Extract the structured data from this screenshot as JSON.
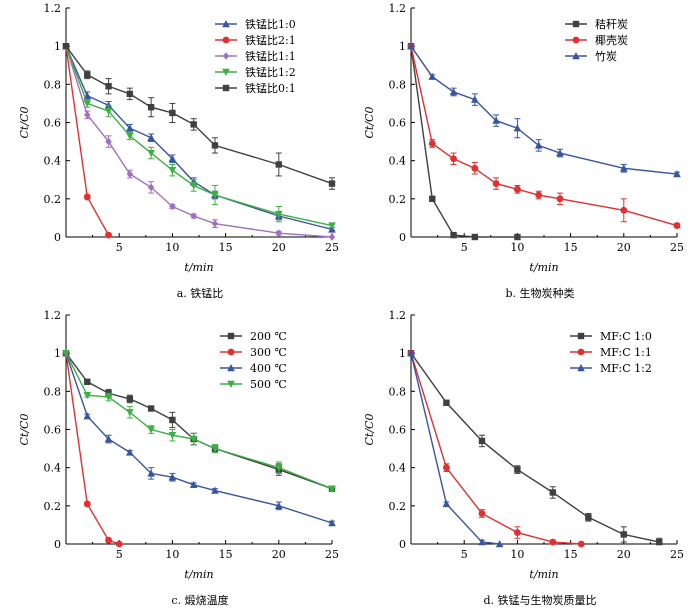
{
  "chart_data": [
    {
      "type": "line",
      "caption": "a.  铁锰比",
      "xlabel": "t/min",
      "ylabel": "Ct/C0",
      "xlim": [
        0,
        25
      ],
      "ylim": [
        0,
        1.2
      ],
      "xticks": [
        5,
        10,
        15,
        20,
        25
      ],
      "yticks": [
        0,
        0.2,
        0.4,
        0.6,
        0.8,
        1.0,
        1.2
      ],
      "legend_position": "top-right",
      "series": [
        {
          "name": "铁锰比1:0",
          "color": "#3a55a0",
          "marker": "triangle-up",
          "x": [
            0,
            2,
            4,
            6,
            8,
            10,
            12,
            14,
            20,
            25
          ],
          "y": [
            1.0,
            0.74,
            0.69,
            0.57,
            0.52,
            0.41,
            0.29,
            0.22,
            0.11,
            0.04
          ],
          "err": [
            0,
            0.02,
            0.02,
            0.02,
            0.02,
            0.02,
            0.02,
            0.02,
            0.02,
            0.01
          ]
        },
        {
          "name": "铁锰比2:1",
          "color": "#e03030",
          "marker": "circle",
          "x": [
            0,
            2,
            4
          ],
          "y": [
            1.0,
            0.21,
            0.01
          ],
          "err": [
            0,
            0.01,
            0.01
          ]
        },
        {
          "name": "铁锰比1:1",
          "color": "#a070c0",
          "marker": "diamond",
          "x": [
            0,
            2,
            4,
            6,
            8,
            10,
            12,
            14,
            20,
            25
          ],
          "y": [
            1.0,
            0.64,
            0.5,
            0.33,
            0.26,
            0.16,
            0.11,
            0.07,
            0.02,
            0.0
          ],
          "err": [
            0,
            0.02,
            0.03,
            0.02,
            0.03,
            0.01,
            0.01,
            0.02,
            0.01,
            0.0
          ]
        },
        {
          "name": "铁锰比1:2",
          "color": "#3cb043",
          "marker": "triangle-down",
          "x": [
            0,
            2,
            4,
            6,
            8,
            10,
            12,
            14,
            20,
            25
          ],
          "y": [
            1.0,
            0.7,
            0.66,
            0.53,
            0.44,
            0.35,
            0.27,
            0.22,
            0.12,
            0.06
          ],
          "err": [
            0,
            0.02,
            0.03,
            0.02,
            0.03,
            0.03,
            0.03,
            0.05,
            0.04,
            0.01
          ]
        },
        {
          "name": "铁锰比0:1",
          "color": "#404040",
          "marker": "square",
          "x": [
            0,
            2,
            4,
            6,
            8,
            10,
            12,
            14,
            20,
            25
          ],
          "y": [
            1.0,
            0.85,
            0.79,
            0.75,
            0.68,
            0.65,
            0.59,
            0.48,
            0.38,
            0.28
          ],
          "err": [
            0,
            0.02,
            0.04,
            0.03,
            0.05,
            0.05,
            0.03,
            0.04,
            0.06,
            0.03
          ]
        }
      ]
    },
    {
      "type": "line",
      "caption": "b.  生物炭种类",
      "xlabel": "t/min",
      "ylabel": "Ct/C0",
      "xlim": [
        0,
        25
      ],
      "ylim": [
        0,
        1.2
      ],
      "xticks": [
        5,
        10,
        15,
        20,
        25
      ],
      "yticks": [
        0,
        0.2,
        0.4,
        0.6,
        0.8,
        1.0,
        1.2
      ],
      "legend_position": "top-right",
      "series": [
        {
          "name": "秸秆炭",
          "color": "#404040",
          "marker": "square",
          "x": [
            0,
            2,
            4,
            6,
            10
          ],
          "y": [
            1.0,
            0.2,
            0.01,
            0.0,
            0.0
          ],
          "err": [
            0,
            0.01,
            0.01,
            0,
            0
          ]
        },
        {
          "name": "椰壳炭",
          "color": "#e03030",
          "marker": "circle",
          "x": [
            0,
            2,
            4,
            6,
            8,
            10,
            12,
            14,
            20,
            25
          ],
          "y": [
            1.0,
            0.49,
            0.41,
            0.36,
            0.28,
            0.25,
            0.22,
            0.2,
            0.14,
            0.06
          ],
          "err": [
            0,
            0.02,
            0.03,
            0.03,
            0.03,
            0.02,
            0.02,
            0.03,
            0.06,
            0.01
          ]
        },
        {
          "name": "竹炭",
          "color": "#3a55a0",
          "marker": "triangle-up",
          "x": [
            0,
            2,
            4,
            6,
            8,
            10,
            12,
            14,
            20,
            25
          ],
          "y": [
            1.0,
            0.84,
            0.76,
            0.72,
            0.61,
            0.57,
            0.48,
            0.44,
            0.36,
            0.33
          ],
          "err": [
            0,
            0.01,
            0.02,
            0.03,
            0.03,
            0.05,
            0.03,
            0.02,
            0.02,
            0.01
          ]
        }
      ]
    },
    {
      "type": "line",
      "caption": "c.  煅烧温度",
      "xlabel": "t/min",
      "ylabel": "Ct/C0",
      "xlim": [
        0,
        25
      ],
      "ylim": [
        0,
        1.2
      ],
      "xticks": [
        5,
        10,
        15,
        20,
        25
      ],
      "yticks": [
        0,
        0.2,
        0.4,
        0.6,
        0.8,
        1.0,
        1.2
      ],
      "legend_position": "top-right",
      "series": [
        {
          "name": "200 ℃",
          "color": "#404040",
          "marker": "square",
          "x": [
            0,
            2,
            4,
            6,
            8,
            10,
            12,
            14,
            20,
            25
          ],
          "y": [
            1.0,
            0.85,
            0.79,
            0.76,
            0.71,
            0.65,
            0.55,
            0.5,
            0.39,
            0.29
          ],
          "err": [
            0,
            0.01,
            0.02,
            0.02,
            0.01,
            0.04,
            0.03,
            0.02,
            0.03,
            0.01
          ]
        },
        {
          "name": "300 ℃",
          "color": "#e03030",
          "marker": "circle",
          "x": [
            0,
            2,
            4,
            5
          ],
          "y": [
            1.0,
            0.21,
            0.02,
            0.0
          ],
          "err": [
            0,
            0.01,
            0.01,
            0
          ]
        },
        {
          "name": "400 ℃",
          "color": "#3a55a0",
          "marker": "triangle-up",
          "x": [
            0,
            2,
            4,
            6,
            8,
            10,
            12,
            14,
            20,
            25
          ],
          "y": [
            1.0,
            0.67,
            0.55,
            0.48,
            0.37,
            0.35,
            0.31,
            0.28,
            0.2,
            0.11
          ],
          "err": [
            0,
            0.01,
            0.02,
            0.01,
            0.03,
            0.02,
            0.01,
            0.01,
            0.02,
            0.01
          ]
        },
        {
          "name": "500 ℃",
          "color": "#3cb043",
          "marker": "triangle-down",
          "x": [
            0,
            2,
            4,
            6,
            8,
            10,
            12,
            14,
            20,
            25
          ],
          "y": [
            1.0,
            0.78,
            0.77,
            0.69,
            0.6,
            0.57,
            0.55,
            0.5,
            0.4,
            0.29
          ],
          "err": [
            0,
            0.01,
            0.02,
            0.03,
            0.02,
            0.03,
            0.03,
            0.02,
            0.03,
            0.01
          ]
        }
      ]
    },
    {
      "type": "line",
      "caption": "d.  铁锰与生物炭质量比",
      "xlabel": "t/min",
      "ylabel": "Ct/C0",
      "xlim": [
        0,
        25
      ],
      "ylim": [
        0,
        1.2
      ],
      "xticks": [
        5,
        10,
        15,
        20,
        25
      ],
      "yticks": [
        0,
        0.2,
        0.4,
        0.6,
        0.8,
        1.0,
        1.2
      ],
      "legend_position": "top-right",
      "series": [
        {
          "name": "MF:C 1:0",
          "color": "#404040",
          "marker": "square",
          "x": [
            0,
            3.33,
            6.67,
            10,
            13.33,
            16.67,
            20,
            23.33
          ],
          "y": [
            1.0,
            0.74,
            0.54,
            0.39,
            0.27,
            0.14,
            0.05,
            0.01
          ],
          "err": [
            0,
            0.01,
            0.03,
            0.02,
            0.03,
            0.02,
            0.04,
            0.02
          ]
        },
        {
          "name": "MF:C 1:1",
          "color": "#e03030",
          "marker": "circle",
          "x": [
            0,
            3.33,
            6.67,
            10,
            13.33,
            16
          ],
          "y": [
            1.0,
            0.4,
            0.16,
            0.06,
            0.01,
            0.0
          ],
          "err": [
            0,
            0.02,
            0.02,
            0.03,
            0.01,
            0
          ]
        },
        {
          "name": "MF:C 1:2",
          "color": "#3a55a0",
          "marker": "triangle-up",
          "x": [
            0,
            3.33,
            6.67,
            8.33
          ],
          "y": [
            1.0,
            0.21,
            0.01,
            0.0
          ],
          "err": [
            0,
            0.01,
            0.01,
            0
          ]
        }
      ]
    }
  ]
}
